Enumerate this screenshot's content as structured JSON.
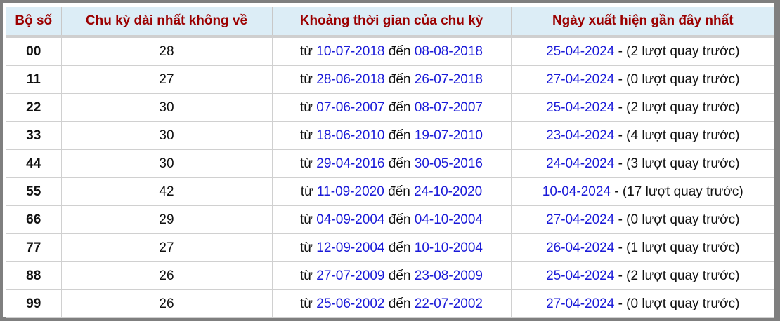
{
  "headers": [
    "Bộ số",
    "Chu kỳ dài nhất không về",
    "Khoảng thời gian của chu kỳ",
    "Ngày xuất hiện gần đây nhất"
  ],
  "words": {
    "from": "từ",
    "to": "đến"
  },
  "rows": [
    {
      "num": "00",
      "cycle": "28",
      "start": "10-07-2018",
      "end": "08-08-2018",
      "last": "25-04-2024",
      "ago": "- (2 lượt quay trước)"
    },
    {
      "num": "11",
      "cycle": "27",
      "start": "28-06-2018",
      "end": "26-07-2018",
      "last": "27-04-2024",
      "ago": "- (0 lượt quay trước)"
    },
    {
      "num": "22",
      "cycle": "30",
      "start": "07-06-2007",
      "end": "08-07-2007",
      "last": "25-04-2024",
      "ago": "- (2 lượt quay trước)"
    },
    {
      "num": "33",
      "cycle": "30",
      "start": "18-06-2010",
      "end": "19-07-2010",
      "last": "23-04-2024",
      "ago": "- (4 lượt quay trước)"
    },
    {
      "num": "44",
      "cycle": "30",
      "start": "29-04-2016",
      "end": "30-05-2016",
      "last": "24-04-2024",
      "ago": "- (3 lượt quay trước)"
    },
    {
      "num": "55",
      "cycle": "42",
      "start": "11-09-2020",
      "end": "24-10-2020",
      "last": "10-04-2024",
      "ago": "- (17 lượt quay trước)"
    },
    {
      "num": "66",
      "cycle": "29",
      "start": "04-09-2004",
      "end": "04-10-2004",
      "last": "27-04-2024",
      "ago": "- (0 lượt quay trước)"
    },
    {
      "num": "77",
      "cycle": "27",
      "start": "12-09-2004",
      "end": "10-10-2004",
      "last": "26-04-2024",
      "ago": "- (1 lượt quay trước)"
    },
    {
      "num": "88",
      "cycle": "26",
      "start": "27-07-2009",
      "end": "23-08-2009",
      "last": "25-04-2024",
      "ago": "- (2 lượt quay trước)"
    },
    {
      "num": "99",
      "cycle": "26",
      "start": "25-06-2002",
      "end": "22-07-2002",
      "last": "27-04-2024",
      "ago": "- (0 lượt quay trước)"
    }
  ],
  "colors": {
    "header_bg": "#dcedf6",
    "header_text": "#9b0000",
    "link": "#1a1ad8",
    "frame": "#7f7f7f"
  }
}
